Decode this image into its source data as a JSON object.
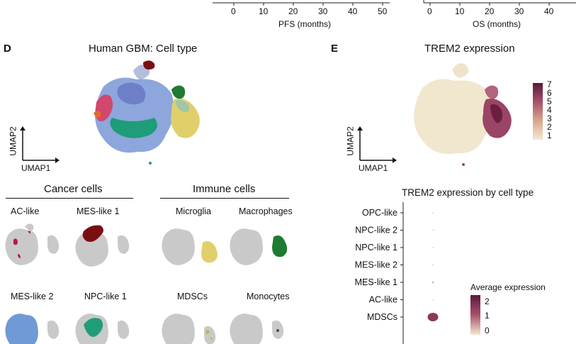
{
  "top_panels": {
    "left_axis": {
      "ticks": [
        "0",
        "10",
        "20",
        "30",
        "40",
        "50"
      ],
      "xlabel": "PFS (months)"
    },
    "right_axis": {
      "ticks": [
        "0",
        "10",
        "20",
        "30",
        "40"
      ],
      "xlabel": "OS (months)"
    }
  },
  "panel_d": {
    "letter": "D",
    "title": "Human GBM: Cell type",
    "umap_x": "UMAP1",
    "umap_y": "UMAP2",
    "groups": [
      {
        "label": "Cancer cells",
        "cells": [
          "AC-like",
          "MES-like 1",
          "MES-like 2",
          "NPC-like 1"
        ]
      },
      {
        "label": "Immune cells",
        "cells": [
          "Microglia",
          "Macrophages",
          "MDSCs",
          "Monocytes"
        ]
      }
    ],
    "colors": {
      "AC-like": "#b5174f",
      "MES-like 1": "#7a0f12",
      "MES-like 2": "#6f9ad6",
      "NPC-like 1": "#1f9c78",
      "Microglia": "#e0cf6a",
      "Macrophages": "#1e7b31",
      "MDSCs": "#c9b449",
      "Monocytes": "#4d4d4d",
      "background": "#c9c9c9"
    }
  },
  "panel_e": {
    "letter": "E",
    "title": "TREM2 expression",
    "umap_x": "UMAP1",
    "umap_y": "UMAP2",
    "colorbar_ticks": [
      "7",
      "6",
      "5",
      "4",
      "3",
      "2",
      "1"
    ],
    "colorbar_colors": {
      "low": "#f3e9d2",
      "high": "#5a1a3a"
    }
  },
  "chart_data": {
    "type": "scatter",
    "title": "TREM2 expression by cell type",
    "categories": [
      "OPC-like",
      "NPC-like 2",
      "NPC-like 1",
      "MES-like 2",
      "MES-like 1",
      "AC-like",
      "MDSCs"
    ],
    "series": [
      {
        "name": "Average expression",
        "values": [
          0,
          0,
          0,
          0,
          0.2,
          0,
          2
        ]
      }
    ],
    "legend": {
      "title": "Average expression",
      "ticks": [
        "2",
        "1",
        "0"
      ],
      "placement": "right"
    }
  }
}
